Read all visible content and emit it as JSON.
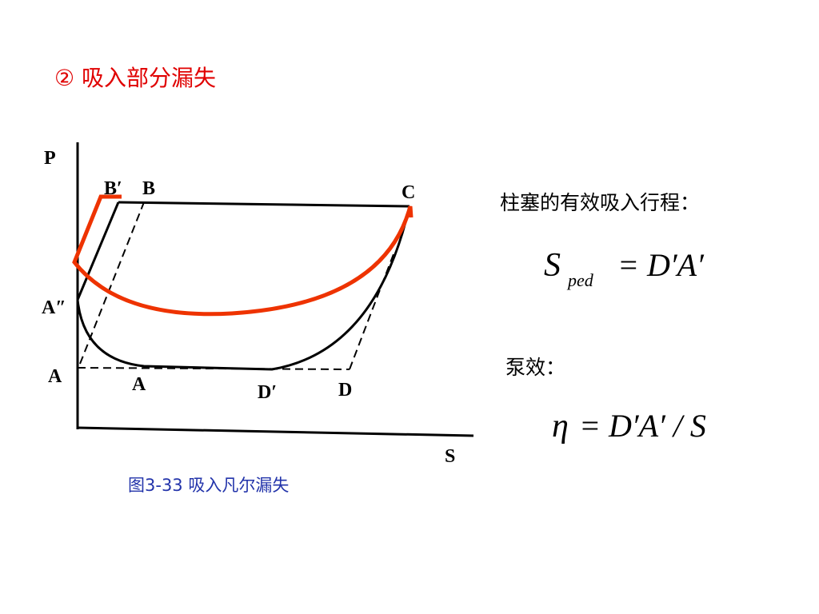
{
  "heading": "② 吸入部分漏失",
  "figure": {
    "axis_p": "P",
    "axis_s": "S",
    "points": {
      "b_prime": "B′",
      "b": "B",
      "c": "C",
      "a_double": "A″",
      "a_axis": "A",
      "a": "A",
      "d_prime": "D′",
      "d": "D"
    },
    "caption": "图3-33 吸入凡尔漏失"
  },
  "stroke_label": "柱塞的有效吸入行程：",
  "formula_stroke": {
    "symbol": "S",
    "subscript": "ped",
    "rhs": "= D′A′"
  },
  "efficiency_label": "泵效：",
  "formula_efficiency": {
    "symbol": "η",
    "rhs": "= D′A′ / S"
  }
}
